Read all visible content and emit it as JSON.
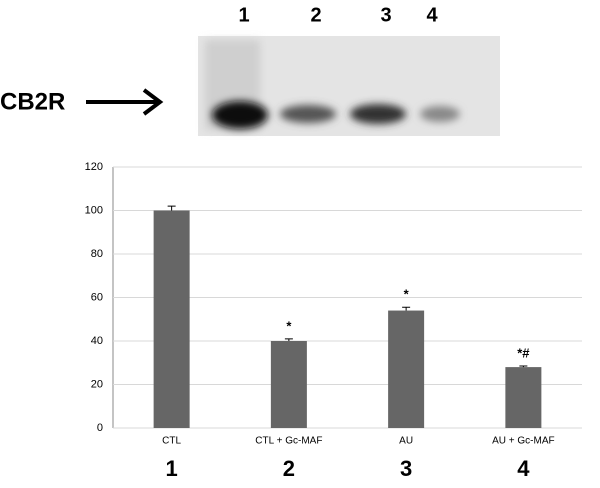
{
  "blot": {
    "label": "CB2R",
    "lanes": [
      "1",
      "2",
      "3",
      "4"
    ]
  },
  "chart_data": {
    "type": "bar",
    "categories": [
      "CTL",
      "CTL + Gc-MAF",
      "AU",
      "AU + Gc-MAF"
    ],
    "values": [
      100,
      40,
      54,
      28
    ],
    "errors": [
      2,
      1,
      1.5,
      0.5
    ],
    "annotations": [
      null,
      "*",
      "*",
      "*#"
    ],
    "lane_numbers": [
      "1",
      "2",
      "3",
      "4"
    ],
    "color": "#666666",
    "ylim": [
      0,
      120
    ],
    "yticks": [
      0,
      20,
      40,
      60,
      80,
      100,
      120
    ],
    "grid": true
  }
}
